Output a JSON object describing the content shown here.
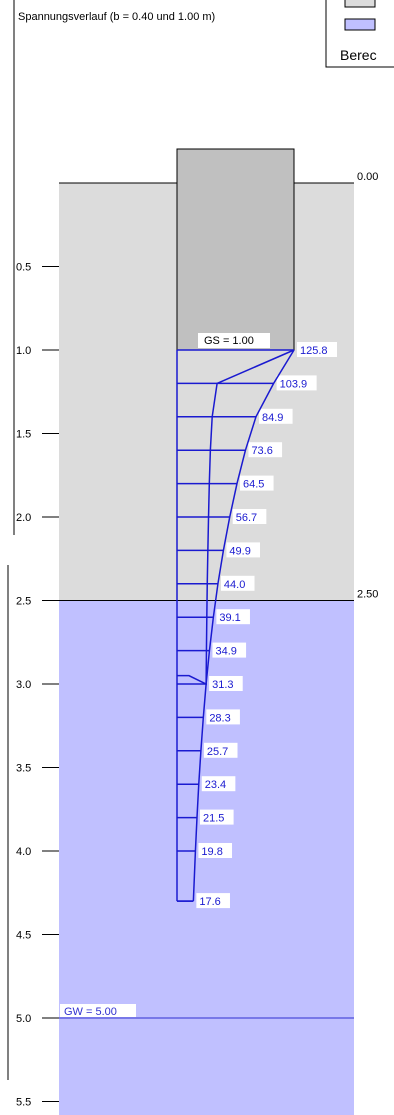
{
  "title": "Spannungsverlauf (b = 0.40 und 1.00 m)",
  "legend": {
    "text": "Berec",
    "swatches": [
      "#dcdcdc",
      "#c0c0ff"
    ]
  },
  "layers": [
    {
      "top": 0.0,
      "bottom": 2.5,
      "color": "#dcdcdc",
      "top_label": "0.00"
    },
    {
      "top": 2.5,
      "bottom": 5.6,
      "color": "#c0c0ff",
      "top_label": "2.50"
    }
  ],
  "foundation": {
    "label": "GS = 1.00",
    "depth": 1.0,
    "color": "#c0c0c0"
  },
  "groundwater": {
    "label": "GW = 5.00",
    "depth": 5.0,
    "color": "#3030d0"
  },
  "y_axis": {
    "ticks": [
      "0.5",
      "1.0",
      "1.5",
      "2.0",
      "2.5",
      "3.0",
      "3.5",
      "4.0",
      "4.5",
      "5.0",
      "5.5"
    ]
  },
  "chart_data": {
    "type": "line",
    "title": "Spannungsverlauf (b = 0.40 und 1.00 m)",
    "x": [
      1.0,
      1.2,
      1.4,
      1.6,
      1.8,
      2.0,
      2.2,
      2.4,
      2.6,
      2.8,
      3.0,
      3.2,
      3.4,
      3.6,
      3.8,
      4.0,
      4.3
    ],
    "series": [
      {
        "values": [
          125.8,
          103.9,
          84.9,
          73.6,
          64.5,
          56.7,
          49.9,
          44.0,
          39.1,
          34.9,
          31.3,
          28.3,
          25.7,
          23.4,
          21.5,
          19.8,
          17.6
        ]
      }
    ],
    "labels": [
      "125.8",
      "103.9",
      "84.9",
      "73.6",
      "64.5",
      "56.7",
      "49.9",
      "44.0",
      "39.1",
      "34.9",
      "31.3",
      "28.3",
      "25.7",
      "23.4",
      "21.5",
      "19.8",
      "17.6"
    ],
    "ylim": [
      0,
      5.6
    ],
    "grid": false
  }
}
